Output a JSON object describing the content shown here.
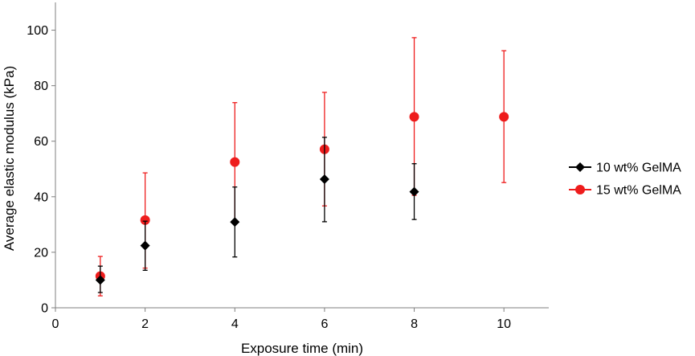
{
  "chart_data": {
    "type": "scatter",
    "title": "",
    "xlabel": "Exposure time (min)",
    "ylabel": "Average elastic modulus (kPa)",
    "xlim": [
      0,
      11
    ],
    "ylim": [
      0,
      110
    ],
    "x_ticks": [
      0,
      2,
      4,
      6,
      8,
      10
    ],
    "y_ticks": [
      0,
      20,
      40,
      60,
      80,
      100
    ],
    "grid": false,
    "legend_position": "right",
    "series": [
      {
        "name": "10 wt% GelMA",
        "color": "#000000",
        "marker": "diamond",
        "x": [
          1,
          2,
          4,
          6,
          8
        ],
        "y": [
          10.0,
          22.4,
          30.9,
          46.3,
          41.8
        ],
        "err_low": [
          5.5,
          13.5,
          18.3,
          31.0,
          31.8
        ],
        "err_high": [
          15.0,
          31.2,
          43.5,
          61.4,
          51.9
        ]
      },
      {
        "name": "15 wt% GelMA",
        "color": "#ee1c1c",
        "marker": "circle",
        "x": [
          1,
          2,
          4,
          6,
          8,
          10
        ],
        "y": [
          11.4,
          31.6,
          52.5,
          57.1,
          68.8,
          68.8
        ],
        "err_low": [
          4.3,
          14.3,
          31.1,
          36.7,
          40.5,
          45.1
        ],
        "err_high": [
          18.5,
          48.6,
          73.9,
          77.6,
          97.3,
          92.6
        ]
      }
    ]
  }
}
